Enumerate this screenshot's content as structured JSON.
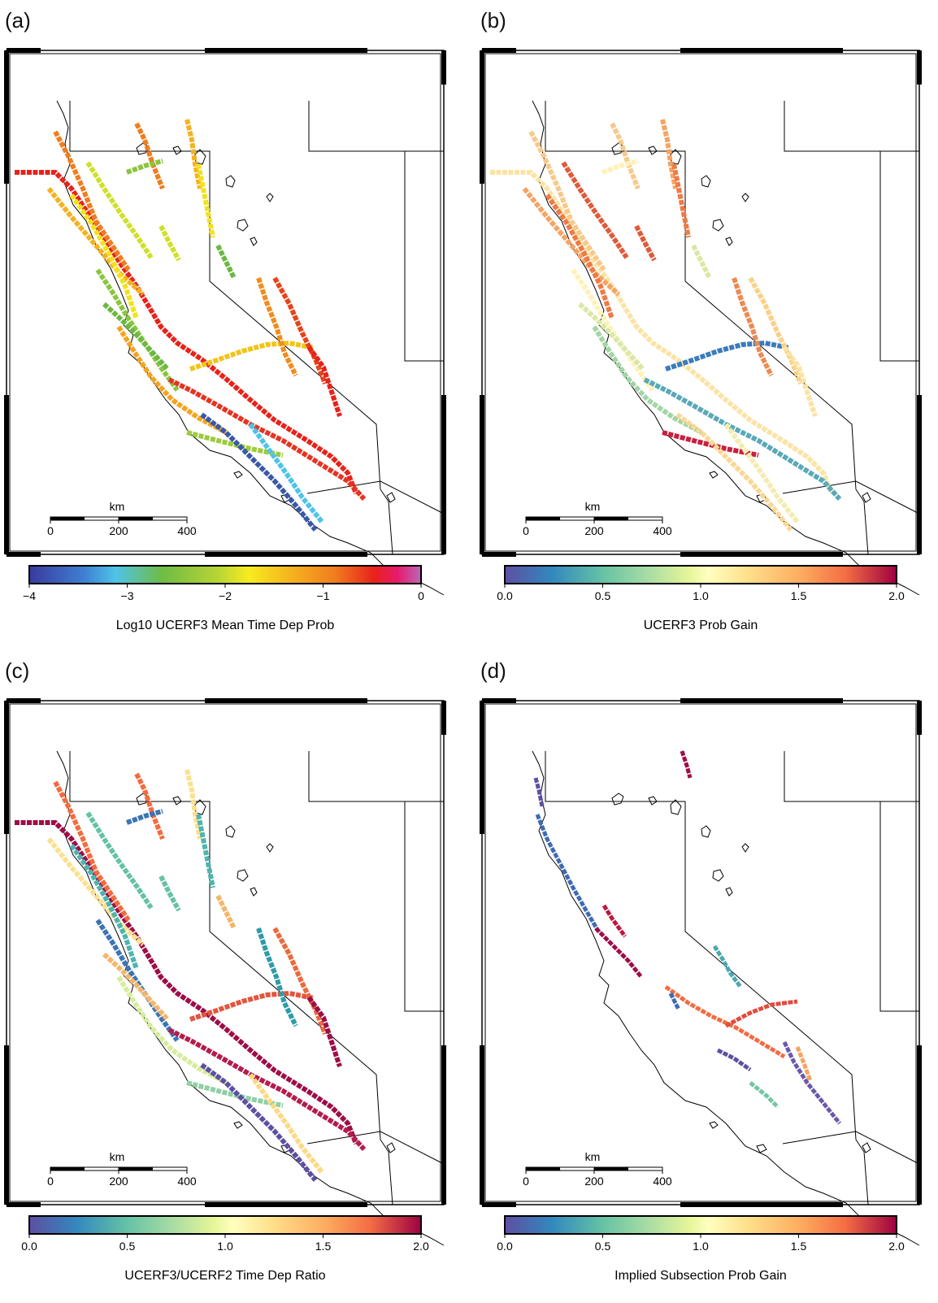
{
  "panels": [
    {
      "label": "(a)",
      "cmap": "rainbow",
      "colorbar": {
        "title": "Log10 UCERF3 Mean Time Dep Prob",
        "ticks": [
          "−4",
          "−3",
          "−2",
          "−1",
          "0"
        ],
        "range": [
          -4,
          0
        ]
      },
      "scale_bar": {
        "unit": "km",
        "ticks": [
          "0",
          "200",
          "400"
        ]
      },
      "fault_colors": [
        "#e8221a",
        "#f07d1e",
        "#f5b21f",
        "#f2e21c",
        "#cfe02a",
        "#8bc53f",
        "#6cb843",
        "#f5a31e",
        "#e63322",
        "#f0c419",
        "#9ccb3b",
        "#3a58a8",
        "#4fc3e8",
        "#f08c1e",
        "#e8431a"
      ]
    },
    {
      "label": "(b)",
      "cmap": "spectral",
      "colorbar": {
        "title": "UCERF3 Prob Gain",
        "ticks": [
          "0.0",
          "0.5",
          "1.0",
          "1.5",
          "2.0"
        ],
        "range": [
          0,
          2
        ]
      },
      "scale_bar": {
        "unit": "km",
        "ticks": [
          "0",
          "200",
          "400"
        ]
      },
      "fault_colors": [
        "#fbe3a5",
        "#f7c98a",
        "#f5a464",
        "#ee7a45",
        "#e05a3a",
        "#fff1b8",
        "#d9e8a5",
        "#a3d4a6",
        "#5aa9b8",
        "#3b7bbd",
        "#c8203f",
        "#fbd795",
        "#f2ecb0",
        "#ec8a52",
        "#f9d189"
      ]
    },
    {
      "label": "(c)",
      "cmap": "spectral",
      "colorbar": {
        "title": "UCERF3/UCERF2 Time Dep Ratio",
        "ticks": [
          "0.0",
          "0.5",
          "1.0",
          "1.5",
          "2.0"
        ],
        "range": [
          0,
          2
        ]
      },
      "scale_bar": {
        "unit": "km",
        "ticks": [
          "0",
          "200",
          "400"
        ]
      },
      "fault_colors": [
        "#9e0d47",
        "#f36b3f",
        "#fbe08e",
        "#4fb4ae",
        "#66c2a5",
        "#3c74b4",
        "#f5b56a",
        "#d7ec9c",
        "#b41c4c",
        "#e2553e",
        "#8fd0a4",
        "#5e4fa2",
        "#fdd985",
        "#2f9ba7",
        "#ea6a3e"
      ]
    },
    {
      "label": "(d)",
      "cmap": "spectral",
      "colorbar": {
        "title": "Implied Subsection Prob Gain",
        "ticks": [
          "0.0",
          "0.5",
          "1.0",
          "1.5",
          "2.0"
        ],
        "range": [
          0,
          2
        ]
      },
      "scale_bar": {
        "unit": "km",
        "ticks": [
          "0",
          "200",
          "400"
        ]
      },
      "fault_colors": [
        "#5e4fa2",
        "#3e6bb2",
        "#9e0d47",
        "#c0163f",
        "#f26c42",
        "#4aa7b0",
        "#e04c3e",
        "#6b59a8",
        "#f5a35f",
        "#73c6a4"
      ]
    }
  ]
}
